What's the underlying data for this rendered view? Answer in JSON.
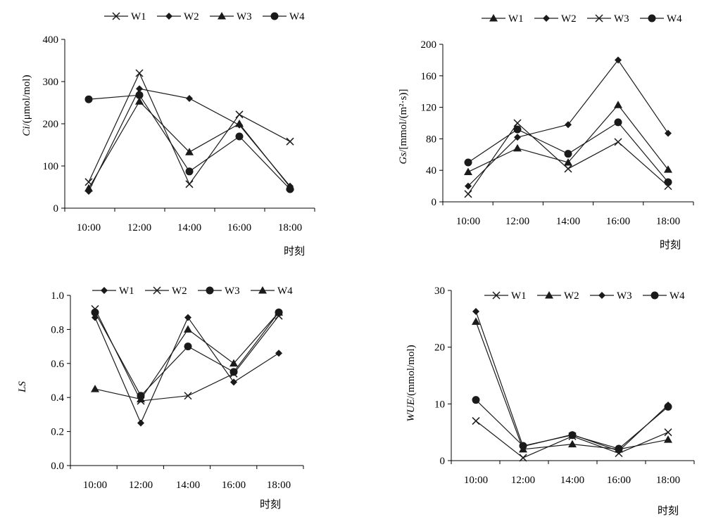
{
  "figure": {
    "style": {
      "line_color": "#1a1a1a",
      "background": "#ffffff"
    },
    "chart_data": [
      {
        "id": "ci",
        "type": "line",
        "ylabel_italic": "Ci",
        "ylabel_rest": "/(μmol/mol)",
        "xlabel": "时刻",
        "categories": [
          "10:00",
          "12:00",
          "14:00",
          "16:00",
          "18:00"
        ],
        "ylim": [
          0,
          400
        ],
        "yticks": [
          0,
          100,
          200,
          300,
          400
        ],
        "ytick_labels": [
          "0",
          "100",
          "200",
          "300",
          "400"
        ],
        "grid": false,
        "legend_position": "top",
        "series": [
          {
            "name": "W1",
            "marker": "x",
            "values": [
              62,
              320,
              57,
              222,
              158
            ]
          },
          {
            "name": "W2",
            "marker": "diamond",
            "values": [
              40,
              283,
              260,
              197,
              52
            ]
          },
          {
            "name": "W3",
            "marker": "triangle",
            "values": [
              47,
              253,
              133,
              200,
              50
            ]
          },
          {
            "name": "W4",
            "marker": "circle",
            "values": [
              258,
              268,
              87,
              170,
              45
            ]
          }
        ]
      },
      {
        "id": "gs",
        "type": "line",
        "ylabel_italic": "Gs",
        "ylabel_rest": "/[mmol/(m²·s)]",
        "xlabel": "时刻",
        "categories": [
          "10:00",
          "12:00",
          "14:00",
          "16:00",
          "18:00"
        ],
        "ylim": [
          0,
          200
        ],
        "yticks": [
          0,
          40,
          80,
          120,
          160,
          200
        ],
        "ytick_labels": [
          "0",
          "40",
          "80",
          "120",
          "160",
          "200"
        ],
        "grid": false,
        "legend_position": "top",
        "series": [
          {
            "name": "W1",
            "marker": "triangle",
            "values": [
              38,
              68,
              50,
              123,
              41
            ]
          },
          {
            "name": "W2",
            "marker": "diamond",
            "values": [
              20,
              82,
              98,
              180,
              87
            ]
          },
          {
            "name": "W3",
            "marker": "x",
            "values": [
              10,
              100,
              42,
              76,
              20
            ]
          },
          {
            "name": "W4",
            "marker": "circle",
            "values": [
              50,
              92,
              61,
              101,
              25
            ]
          }
        ]
      },
      {
        "id": "ls",
        "type": "line",
        "ylabel_italic": "LS",
        "ylabel_rest": "",
        "xlabel": "时刻",
        "categories": [
          "10:00",
          "12:00",
          "14:00",
          "16:00",
          "18:00"
        ],
        "ylim": [
          0,
          1.0
        ],
        "yticks": [
          0,
          0.2,
          0.4,
          0.6,
          0.8,
          1.0
        ],
        "ytick_labels": [
          "0.0",
          "0.2",
          "0.4",
          "0.6",
          "0.8",
          "1.0"
        ],
        "grid": false,
        "legend_position": "top",
        "series": [
          {
            "name": "W1",
            "marker": "diamond",
            "values": [
              0.87,
              0.25,
              0.87,
              0.49,
              0.66
            ]
          },
          {
            "name": "W2",
            "marker": "x",
            "values": [
              0.92,
              0.38,
              0.41,
              0.54,
              0.88
            ]
          },
          {
            "name": "W3",
            "marker": "circle",
            "values": [
              0.9,
              0.41,
              0.7,
              0.55,
              0.9
            ]
          },
          {
            "name": "W4",
            "marker": "triangle",
            "values": [
              0.45,
              0.39,
              0.8,
              0.6,
              0.9
            ]
          }
        ]
      },
      {
        "id": "wue",
        "type": "line",
        "ylabel_italic": "WUE",
        "ylabel_rest": "/(mmol/mol)",
        "xlabel": "时刻",
        "categories": [
          "10:00",
          "12:00",
          "14:00",
          "16:00",
          "18:00"
        ],
        "ylim": [
          0,
          30
        ],
        "yticks": [
          0,
          10,
          20,
          30
        ],
        "ytick_labels": [
          "0",
          "10",
          "20",
          "30"
        ],
        "grid": false,
        "legend_position": "top",
        "series": [
          {
            "name": "W1",
            "marker": "x",
            "values": [
              7.0,
              0.5,
              4.3,
              1.3,
              5.0
            ]
          },
          {
            "name": "W2",
            "marker": "triangle",
            "values": [
              24.5,
              2.0,
              2.9,
              2.0,
              3.7
            ]
          },
          {
            "name": "W3",
            "marker": "diamond",
            "values": [
              26.3,
              2.5,
              4.6,
              1.7,
              9.8
            ]
          },
          {
            "name": "W4",
            "marker": "circle",
            "values": [
              10.7,
              2.6,
              4.5,
              2.1,
              9.5
            ]
          }
        ]
      }
    ]
  }
}
